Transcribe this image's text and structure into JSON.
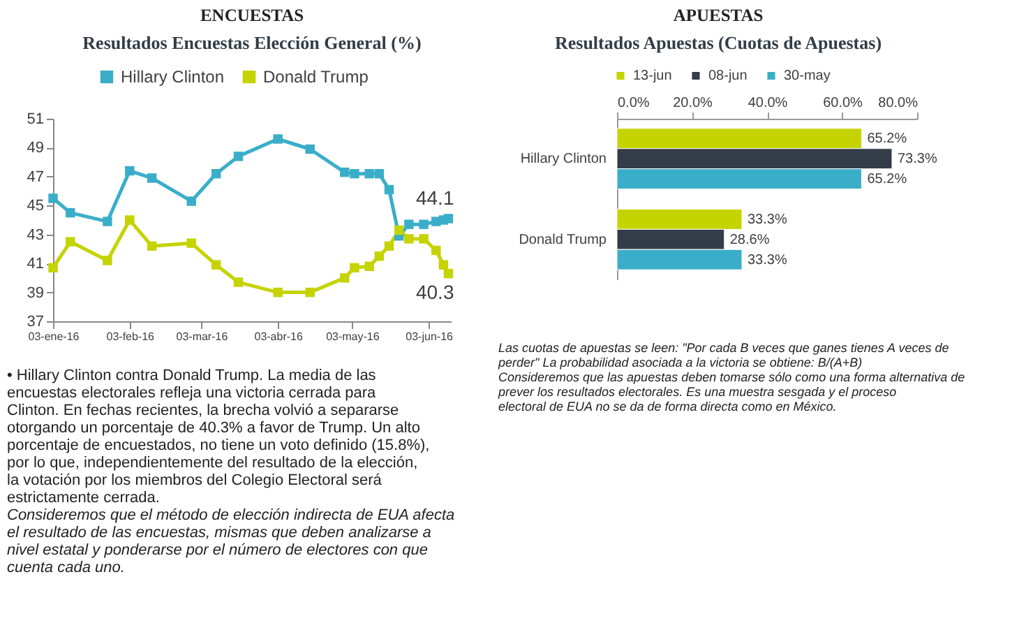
{
  "chart_data": [
    {
      "type": "line",
      "title": "Resultados Encuestas Elección General (%)",
      "annotations": [
        "ENCUESTAS",
        {
          "text": "44.1",
          "x": "2016-06-11",
          "y": 44.1
        },
        {
          "text": "40.3",
          "x": "2016-06-11",
          "y": 40.3
        },
        "• Hillary Clinton contra Donald Trump. La media de las encuestas electorales refleja una victoria cerrada para Clinton. En fechas recientes, la brecha volvió a separarse otorgando un porcentaje de 40.3% a favor de Trump. Un alto porcentaje de encuestados, no tiene un voto definido (15.8%), por lo que, independientemente del resultado de la elección, la votación por los miembros del Colegio Electoral será estrictamente cerrada.",
        "Consideremos que el método de elección indirecta de EUA afecta el resultado de las encuestas, mismas que deben analizarse a nivel estatal y ponderarse por el número de electores con que cuenta cada uno."
      ],
      "x": [
        "2016-01-03",
        "2016-01-10",
        "2016-01-25",
        "2016-02-03",
        "2016-02-12",
        "2016-02-28",
        "2016-03-09",
        "2016-03-18",
        "2016-04-03",
        "2016-04-16",
        "2016-04-30",
        "2016-05-04",
        "2016-05-10",
        "2016-05-14",
        "2016-05-18",
        "2016-05-22",
        "2016-05-26",
        "2016-06-01",
        "2016-06-06",
        "2016-06-09",
        "2016-06-11"
      ],
      "series": [
        {
          "name": "Hillary Clinton",
          "color": "#3aaec8",
          "values": [
            45.5,
            44.5,
            43.9,
            47.4,
            46.9,
            45.3,
            47.2,
            48.4,
            49.6,
            48.9,
            47.3,
            47.2,
            47.2,
            47.2,
            46.1,
            42.9,
            43.7,
            43.7,
            43.9,
            44.0,
            44.1
          ]
        },
        {
          "name": "Donald Trump",
          "color": "#c5d300",
          "values": [
            40.7,
            42.5,
            41.2,
            44.0,
            42.2,
            42.4,
            40.9,
            39.7,
            39.0,
            39.0,
            40.0,
            40.7,
            40.8,
            41.5,
            42.2,
            43.3,
            42.7,
            42.7,
            41.9,
            40.9,
            40.3
          ]
        }
      ],
      "xlim": [
        "2016-01-03",
        "2016-06-12"
      ],
      "xticks": [
        {
          "value": "2016-01-03",
          "label": "03-ene-16"
        },
        {
          "value": "2016-02-03",
          "label": "03-feb-16"
        },
        {
          "value": "2016-03-03",
          "label": "03-mar-16"
        },
        {
          "value": "2016-04-03",
          "label": "03-abr-16"
        },
        {
          "value": "2016-05-03",
          "label": "03-may-16"
        },
        {
          "value": "2016-06-03",
          "label": "03-jun-16"
        }
      ],
      "ylim": [
        37,
        51
      ],
      "yticks": [
        37,
        39,
        41,
        43,
        45,
        47,
        49,
        51
      ],
      "grid": false,
      "legend": "top",
      "marker": "square"
    },
    {
      "type": "bar",
      "orientation": "horizontal",
      "title": "Resultados Apuestas (Cuotas de Apuestas)",
      "annotations": [
        "APUESTAS",
        "Las cuotas de apuestas se leen: \"Por cada B veces que ganes tienes A veces de perder\" La probabilidad asociada a la victoria se obtiene: B/(A+B)",
        "Consideremos que las apuestas deben tomarse sólo como una forma alternativa de prever los resultados electorales. Es una muestra sesgada y el proceso electoral de EUA no se da de forma directa como en México."
      ],
      "categories": [
        "Hillary Clinton",
        "Donald Trump"
      ],
      "series": [
        {
          "name": "13-jun",
          "color": "#c5d300",
          "values": [
            65.2,
            33.3
          ],
          "value_labels": [
            "65.2%",
            "33.3%"
          ]
        },
        {
          "name": "08-jun",
          "color": "#333d47",
          "values": [
            73.3,
            28.6
          ],
          "value_labels": [
            "73.3%",
            "28.6%"
          ]
        },
        {
          "name": "30-may",
          "color": "#3aaec8",
          "values": [
            65.2,
            33.3
          ],
          "value_labels": [
            "65.2%",
            "33.3%"
          ]
        }
      ],
      "xlim": [
        0,
        80
      ],
      "xticks": [
        {
          "value": 0,
          "label": "0.0%"
        },
        {
          "value": 20,
          "label": "20.0%"
        },
        {
          "value": 40,
          "label": "40.0%"
        },
        {
          "value": 60,
          "label": "60.0%"
        },
        {
          "value": 80,
          "label": "80.0%"
        }
      ],
      "grid": false,
      "legend": "top"
    }
  ]
}
